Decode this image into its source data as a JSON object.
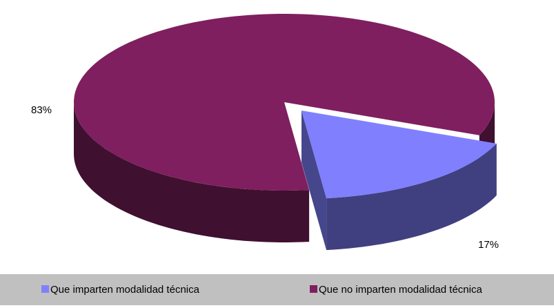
{
  "chart_data": {
    "type": "pie",
    "categories": [
      "Que imparten modalidad técnica",
      "Que no imparten modalidad técnica"
    ],
    "values": [
      17,
      83
    ],
    "value_labels": [
      "17%",
      "83%"
    ],
    "colors": [
      "#8080ff",
      "#7f1f5f"
    ],
    "legend": "bottom"
  }
}
